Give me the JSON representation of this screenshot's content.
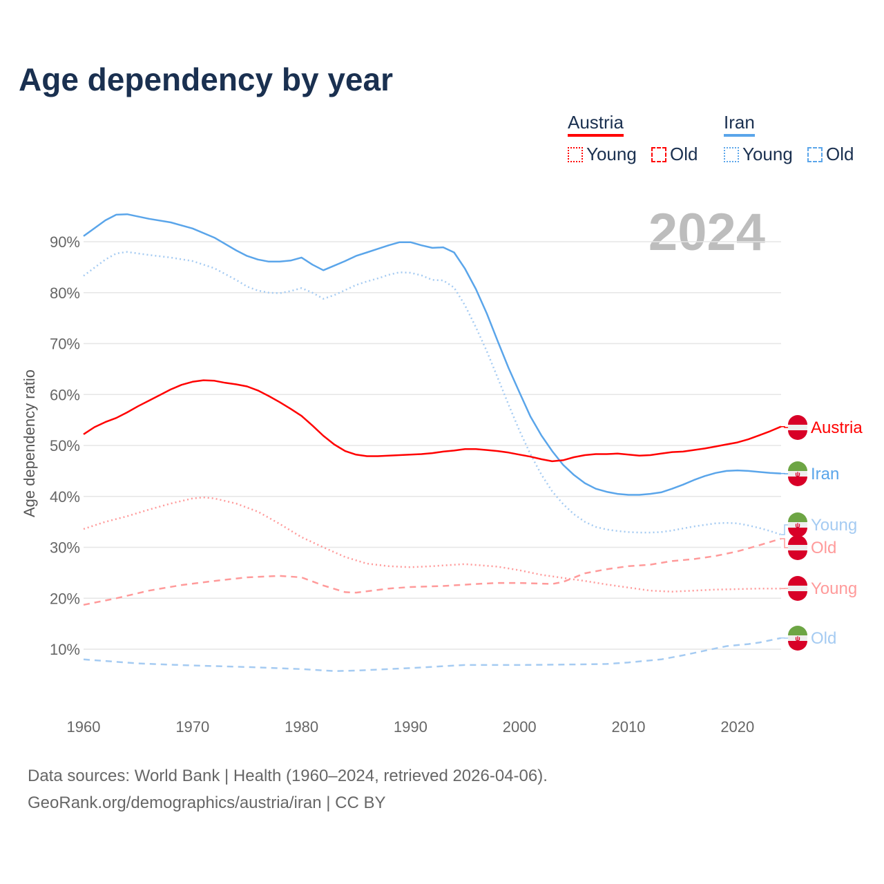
{
  "title": "Age dependency by year",
  "legend": {
    "groups": [
      {
        "country": "Austria",
        "color": "#ff0000",
        "light": "#ff9a9a",
        "items": [
          "Young",
          "Old"
        ]
      },
      {
        "country": "Iran",
        "color": "#5aa5ea",
        "light": "#a5cbf2",
        "items": [
          "Young",
          "Old"
        ]
      }
    ]
  },
  "footer": {
    "line1": "Data sources: World Bank | Health (1960–2024, retrieved 2026-04-06).",
    "line2": "GeoRank.org/demographics/austria/iran | CC BY"
  },
  "chart_data": {
    "type": "line",
    "title": "Age dependency by year",
    "year_label": "2024",
    "xlabel": "",
    "ylabel": "Age dependency ratio",
    "xlim": [
      1960,
      2024
    ],
    "ylim": [
      0,
      97
    ],
    "x_ticks": [
      "1960",
      "1970",
      "1980",
      "1990",
      "2000",
      "2010",
      "2020"
    ],
    "y_ticks": [
      "10%",
      "20%",
      "30%",
      "40%",
      "50%",
      "60%",
      "70%",
      "80%",
      "90%"
    ],
    "grid": true,
    "series": [
      {
        "name": "Iran",
        "label": "Iran",
        "country": "Iran",
        "style": "solid",
        "color": "#5aa5ea",
        "x": [
          1960,
          1962,
          1963,
          1964,
          1966,
          1968,
          1970,
          1972,
          1974,
          1975,
          1976,
          1977,
          1978,
          1979,
          1980,
          1981,
          1982,
          1983,
          1984,
          1985,
          1986,
          1987,
          1988,
          1989,
          1990,
          1991,
          1992,
          1993,
          1994,
          1995,
          1996,
          1997,
          1998,
          1999,
          2000,
          2001,
          2002,
          2003,
          2004,
          2005,
          2006,
          2007,
          2008,
          2009,
          2010,
          2011,
          2012,
          2013,
          2014,
          2015,
          2016,
          2017,
          2018,
          2019,
          2020,
          2021,
          2022,
          2023,
          2024
        ],
        "y": [
          91.1,
          94.2,
          95.3,
          95.4,
          94.5,
          93.8,
          92.6,
          90.8,
          88.3,
          87.2,
          86.5,
          86.1,
          86.1,
          86.3,
          86.9,
          85.5,
          84.4,
          85.3,
          86.2,
          87.2,
          87.9,
          88.6,
          89.3,
          89.9,
          89.9,
          89.3,
          88.8,
          88.9,
          87.9,
          84.7,
          80.7,
          75.9,
          70.5,
          65.2,
          60.4,
          55.7,
          52.0,
          48.9,
          46.2,
          44.2,
          42.6,
          41.5,
          40.9,
          40.5,
          40.3,
          40.3,
          40.5,
          40.8,
          41.5,
          42.3,
          43.2,
          44.0,
          44.6,
          45.0,
          45.1,
          45.0,
          44.8,
          44.6,
          44.5
        ]
      },
      {
        "name": "Iran Young",
        "label": "Young",
        "country": "Iran",
        "style": "dotted",
        "color": "#a5cbf2",
        "x": [
          1960,
          1962,
          1963,
          1964,
          1966,
          1968,
          1970,
          1972,
          1974,
          1975,
          1976,
          1977,
          1978,
          1979,
          1980,
          1981,
          1982,
          1983,
          1984,
          1985,
          1986,
          1987,
          1988,
          1989,
          1990,
          1991,
          1992,
          1993,
          1994,
          1995,
          1996,
          1997,
          1998,
          1999,
          2000,
          2001,
          2002,
          2003,
          2004,
          2005,
          2006,
          2007,
          2008,
          2009,
          2010,
          2011,
          2012,
          2013,
          2014,
          2015,
          2016,
          2017,
          2018,
          2019,
          2020,
          2021,
          2022,
          2023,
          2024
        ],
        "y": [
          83.3,
          86.5,
          87.7,
          88.0,
          87.4,
          86.9,
          86.2,
          84.8,
          82.5,
          81.2,
          80.4,
          80.0,
          79.9,
          80.3,
          80.9,
          80.0,
          78.8,
          79.5,
          80.5,
          81.5,
          82.2,
          82.8,
          83.5,
          84.0,
          83.9,
          83.4,
          82.5,
          82.4,
          81.0,
          77.5,
          73.2,
          68.5,
          63.3,
          58.0,
          52.9,
          48.3,
          44.3,
          41.0,
          38.5,
          36.5,
          35.0,
          34.0,
          33.5,
          33.2,
          33.0,
          32.9,
          32.9,
          33.0,
          33.3,
          33.7,
          34.1,
          34.4,
          34.7,
          34.8,
          34.7,
          34.3,
          33.8,
          33.2,
          32.5
        ]
      },
      {
        "name": "Iran Old",
        "label": "Old",
        "country": "Iran",
        "style": "dashed",
        "color": "#a5cbf2",
        "x": [
          1960,
          1965,
          1970,
          1975,
          1980,
          1983,
          1985,
          1990,
          1995,
          2000,
          2005,
          2008,
          2010,
          2013,
          2015,
          2017,
          2019,
          2021,
          2022,
          2024
        ],
        "y": [
          8.0,
          7.2,
          6.8,
          6.5,
          6.1,
          5.7,
          5.8,
          6.3,
          6.9,
          6.9,
          7.0,
          7.1,
          7.4,
          8.0,
          8.8,
          9.7,
          10.6,
          11.0,
          11.3,
          12.2
        ]
      },
      {
        "name": "Austria",
        "label": "Austria",
        "country": "Austria",
        "style": "solid",
        "color": "#ff0000",
        "x": [
          1960,
          1961,
          1962,
          1963,
          1964,
          1965,
          1966,
          1967,
          1968,
          1969,
          1970,
          1971,
          1972,
          1973,
          1974,
          1975,
          1976,
          1977,
          1978,
          1979,
          1980,
          1981,
          1982,
          1983,
          1984,
          1985,
          1986,
          1987,
          1988,
          1989,
          1990,
          1991,
          1992,
          1993,
          1994,
          1995,
          1996,
          1997,
          1998,
          1999,
          2000,
          2001,
          2002,
          2003,
          2004,
          2005,
          2006,
          2007,
          2008,
          2009,
          2010,
          2011,
          2012,
          2013,
          2014,
          2015,
          2016,
          2017,
          2018,
          2019,
          2020,
          2021,
          2022,
          2023,
          2024
        ],
        "y": [
          52.2,
          53.6,
          54.6,
          55.4,
          56.5,
          57.7,
          58.8,
          59.9,
          61.0,
          61.9,
          62.5,
          62.8,
          62.7,
          62.3,
          62.0,
          61.6,
          60.8,
          59.7,
          58.5,
          57.2,
          55.8,
          53.9,
          51.9,
          50.2,
          48.9,
          48.2,
          47.9,
          47.9,
          48.0,
          48.1,
          48.2,
          48.3,
          48.5,
          48.8,
          49.0,
          49.3,
          49.3,
          49.1,
          48.9,
          48.6,
          48.2,
          47.8,
          47.3,
          46.9,
          47.1,
          47.7,
          48.1,
          48.3,
          48.3,
          48.4,
          48.2,
          48.0,
          48.1,
          48.4,
          48.7,
          48.8,
          49.1,
          49.4,
          49.8,
          50.2,
          50.6,
          51.2,
          52.0,
          52.8,
          53.7
        ]
      },
      {
        "name": "Austria Young",
        "label": "Young",
        "country": "Austria",
        "style": "dotted",
        "color": "#ff9a9a",
        "x": [
          1960,
          1962,
          1964,
          1966,
          1968,
          1970,
          1971,
          1972,
          1974,
          1976,
          1978,
          1980,
          1982,
          1984,
          1986,
          1988,
          1990,
          1992,
          1995,
          1998,
          2000,
          2002,
          2004,
          2006,
          2008,
          2010,
          2012,
          2014,
          2016,
          2018,
          2020,
          2022,
          2024
        ],
        "y": [
          33.6,
          35.0,
          36.1,
          37.4,
          38.6,
          39.6,
          39.8,
          39.6,
          38.6,
          37.0,
          34.6,
          32.0,
          30.0,
          28.1,
          26.8,
          26.3,
          26.1,
          26.3,
          26.7,
          26.2,
          25.5,
          24.6,
          24.0,
          23.4,
          22.7,
          22.1,
          21.5,
          21.3,
          21.5,
          21.7,
          21.8,
          21.9,
          21.9
        ]
      },
      {
        "name": "Austria Old",
        "label": "Old",
        "country": "Austria",
        "style": "dashed",
        "color": "#ff9a9a",
        "x": [
          1960,
          1963,
          1966,
          1969,
          1972,
          1975,
          1978,
          1980,
          1982,
          1984,
          1985,
          1988,
          1990,
          1993,
          1996,
          1998,
          2000,
          2003,
          2004,
          2006,
          2008,
          2010,
          2012,
          2014,
          2016,
          2018,
          2020,
          2022,
          2024
        ],
        "y": [
          18.7,
          20.0,
          21.5,
          22.6,
          23.4,
          24.1,
          24.4,
          24.1,
          22.5,
          21.2,
          21.1,
          21.9,
          22.2,
          22.4,
          22.8,
          23.0,
          23.0,
          22.8,
          23.2,
          24.9,
          25.7,
          26.3,
          26.6,
          27.3,
          27.7,
          28.3,
          29.2,
          30.4,
          31.7
        ]
      }
    ]
  }
}
